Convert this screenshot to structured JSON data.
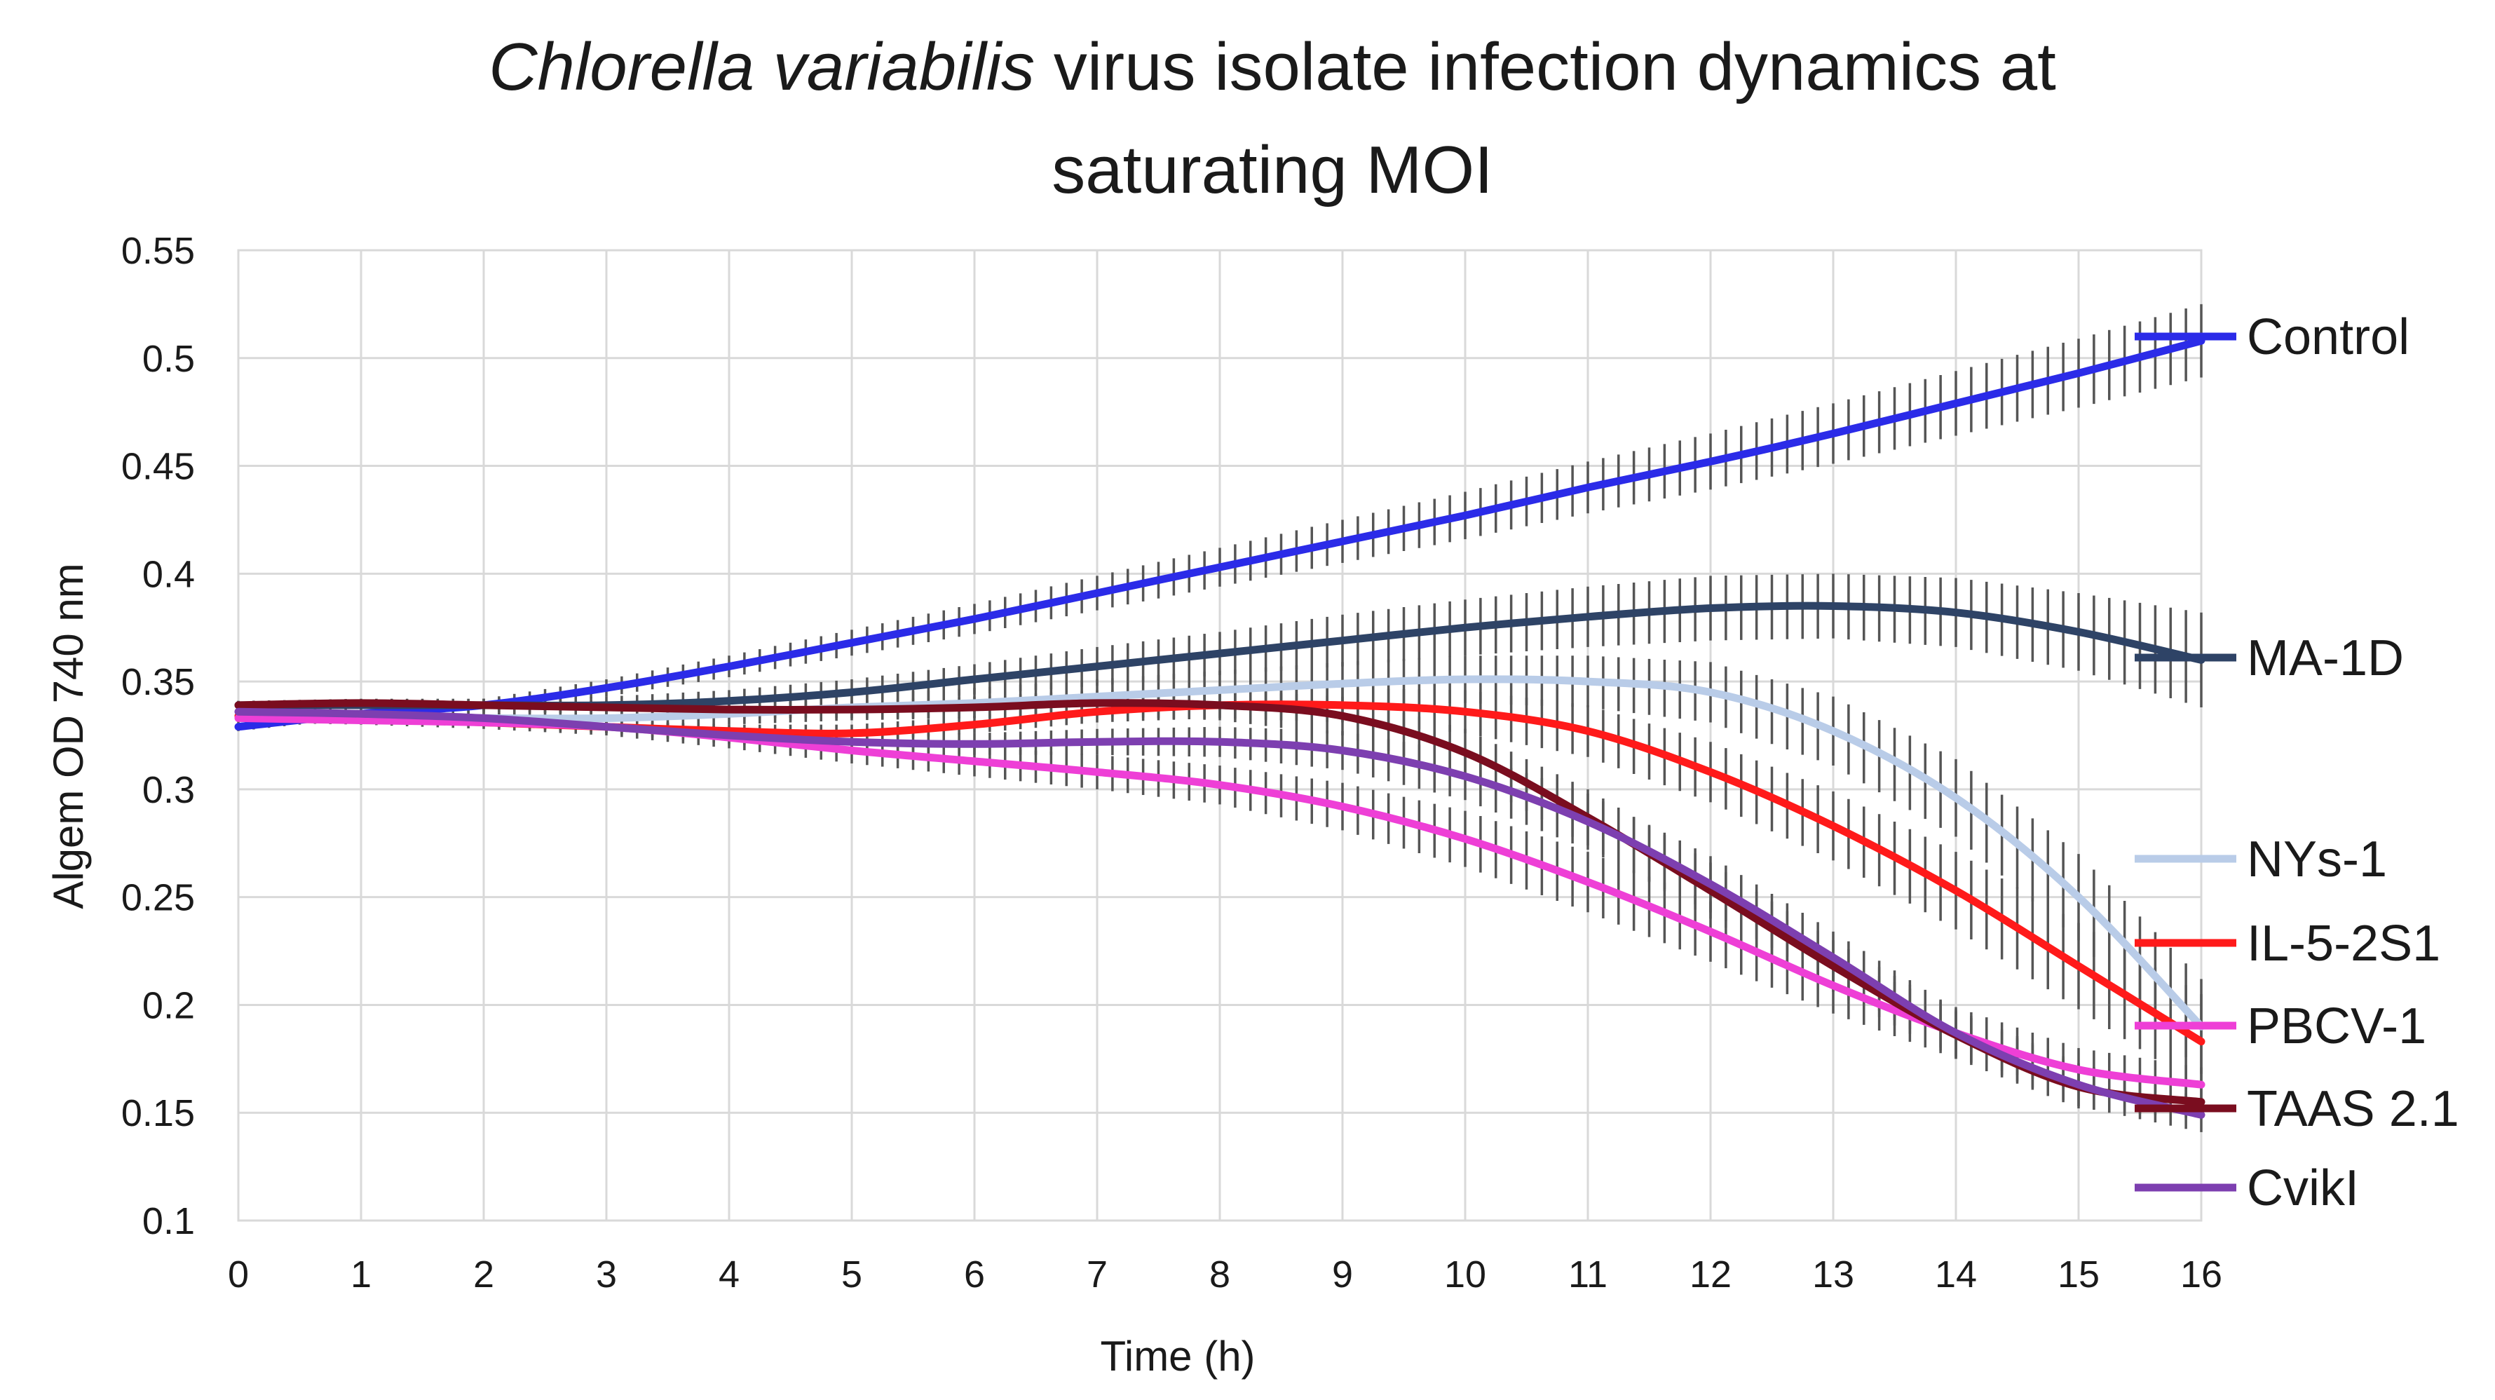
{
  "chart_data": {
    "type": "line",
    "title": {
      "italic_part": "Chlorella variabilis",
      "line1_rest": " virus isolate infection dynamics at",
      "line2": "saturating MOI"
    },
    "xlabel": "Time (h)",
    "ylabel": "Algem OD 740 nm",
    "xlim": [
      0,
      16
    ],
    "ylim": [
      0.1,
      0.55
    ],
    "x_ticks": [
      0,
      1,
      2,
      3,
      4,
      5,
      6,
      7,
      8,
      9,
      10,
      11,
      12,
      13,
      14,
      15,
      16
    ],
    "y_ticks": [
      0.1,
      0.15,
      0.2,
      0.25,
      0.3,
      0.35,
      0.4,
      0.45,
      0.5,
      0.55
    ],
    "y_tick_labels": [
      "0.1",
      "0.15",
      "0.2",
      "0.25",
      "0.3",
      "0.35",
      "0.4",
      "0.45",
      "0.5",
      "0.55"
    ],
    "grid": true,
    "error_bars": "vertical bars on each plotted point",
    "x": [
      0,
      1,
      2,
      3,
      4,
      5,
      6,
      7,
      8,
      9,
      10,
      11,
      12,
      13,
      14,
      15,
      16
    ],
    "series": [
      {
        "name": "Control",
        "color": "#2b2be8",
        "values": [
          0.329,
          0.335,
          0.339,
          0.347,
          0.357,
          0.368,
          0.379,
          0.391,
          0.403,
          0.415,
          0.427,
          0.44,
          0.452,
          0.465,
          0.479,
          0.493,
          0.508
        ],
        "errors": [
          0.002,
          0.002,
          0.003,
          0.004,
          0.005,
          0.006,
          0.007,
          0.008,
          0.009,
          0.01,
          0.011,
          0.012,
          0.013,
          0.014,
          0.015,
          0.016,
          0.017
        ]
      },
      {
        "name": "MA-1D",
        "color": "#2e4366",
        "values": [
          0.339,
          0.339,
          0.339,
          0.339,
          0.341,
          0.345,
          0.351,
          0.357,
          0.363,
          0.369,
          0.375,
          0.38,
          0.384,
          0.385,
          0.382,
          0.373,
          0.36
        ],
        "errors": [
          0.002,
          0.002,
          0.003,
          0.004,
          0.005,
          0.006,
          0.007,
          0.009,
          0.01,
          0.012,
          0.013,
          0.014,
          0.015,
          0.015,
          0.016,
          0.018,
          0.022
        ]
      },
      {
        "name": "NYs-1",
        "color": "#b9cce8",
        "values": [
          0.334,
          0.334,
          0.333,
          0.333,
          0.335,
          0.338,
          0.34,
          0.343,
          0.346,
          0.349,
          0.351,
          0.35,
          0.345,
          0.327,
          0.296,
          0.25,
          0.19
        ],
        "errors": [
          0.002,
          0.002,
          0.003,
          0.004,
          0.005,
          0.006,
          0.007,
          0.008,
          0.009,
          0.01,
          0.011,
          0.012,
          0.014,
          0.016,
          0.018,
          0.02,
          0.022
        ]
      },
      {
        "name": "IL-5-2S1",
        "color": "#ff1a1a",
        "values": [
          0.334,
          0.333,
          0.331,
          0.329,
          0.327,
          0.326,
          0.33,
          0.336,
          0.339,
          0.339,
          0.336,
          0.327,
          0.308,
          0.283,
          0.253,
          0.218,
          0.183
        ],
        "errors": [
          0.002,
          0.002,
          0.002,
          0.003,
          0.003,
          0.004,
          0.004,
          0.005,
          0.006,
          0.008,
          0.01,
          0.012,
          0.014,
          0.016,
          0.018,
          0.02,
          0.022
        ]
      },
      {
        "name": "PBCV-1",
        "color": "#ee3fd6",
        "values": [
          0.333,
          0.332,
          0.331,
          0.329,
          0.324,
          0.318,
          0.313,
          0.308,
          0.302,
          0.292,
          0.277,
          0.257,
          0.234,
          0.209,
          0.187,
          0.17,
          0.163
        ],
        "errors": [
          0.002,
          0.002,
          0.003,
          0.004,
          0.005,
          0.006,
          0.007,
          0.008,
          0.009,
          0.011,
          0.013,
          0.014,
          0.014,
          0.013,
          0.012,
          0.01,
          0.008
        ]
      },
      {
        "name": "TAAS 2.1",
        "color": "#7a0d1f",
        "values": [
          0.339,
          0.34,
          0.339,
          0.338,
          0.337,
          0.337,
          0.338,
          0.34,
          0.339,
          0.334,
          0.317,
          0.287,
          0.253,
          0.218,
          0.186,
          0.162,
          0.155
        ],
        "errors": [
          0.002,
          0.002,
          0.003,
          0.003,
          0.004,
          0.004,
          0.005,
          0.006,
          0.007,
          0.009,
          0.011,
          0.013,
          0.013,
          0.012,
          0.011,
          0.01,
          0.008
        ]
      },
      {
        "name": "CvikI",
        "color": "#7d3fb0",
        "values": [
          0.336,
          0.335,
          0.333,
          0.329,
          0.325,
          0.322,
          0.321,
          0.322,
          0.322,
          0.318,
          0.306,
          0.285,
          0.256,
          0.222,
          0.187,
          0.163,
          0.149
        ],
        "errors": [
          0.002,
          0.002,
          0.003,
          0.003,
          0.004,
          0.004,
          0.005,
          0.006,
          0.007,
          0.009,
          0.011,
          0.013,
          0.013,
          0.012,
          0.011,
          0.01,
          0.008
        ]
      }
    ]
  }
}
